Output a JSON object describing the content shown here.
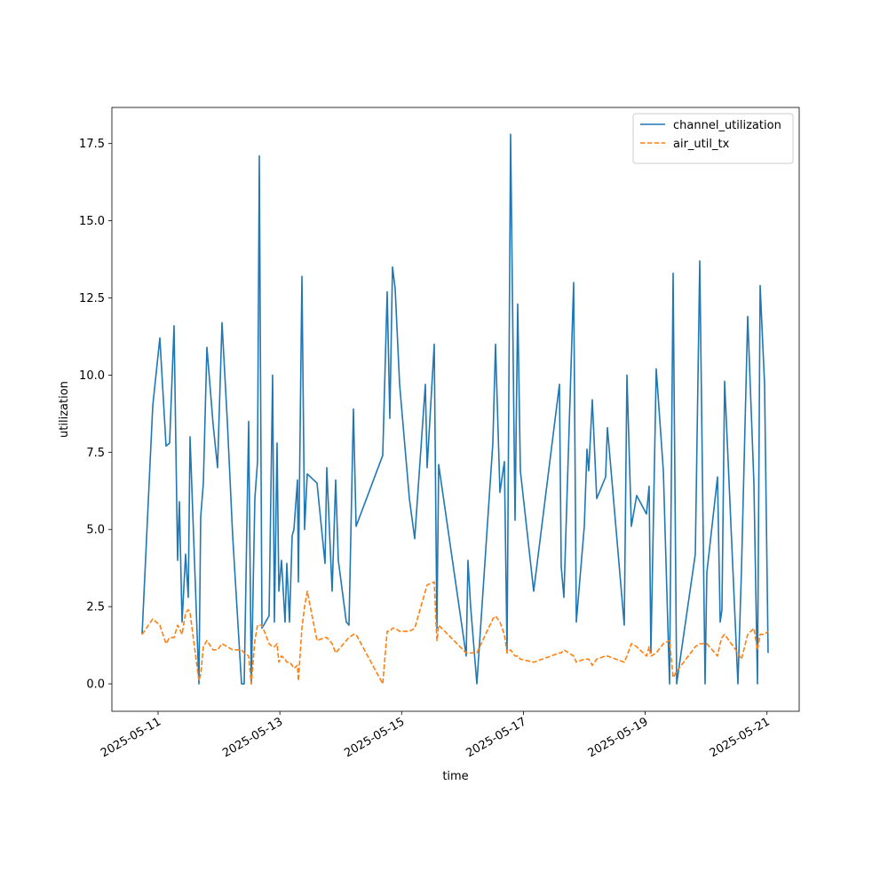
{
  "chart_data": {
    "type": "line",
    "xlabel": "time",
    "ylabel": "utilization",
    "x": [
      "2025-05-10 17:42",
      "2025-05-10 21:54",
      "2025-05-11 00:42",
      "2025-05-11 03:09",
      "2025-05-11 04:33",
      "2025-05-11 06:18",
      "2025-05-11 07:42",
      "2025-05-11 08:24",
      "2025-05-11 09:27",
      "2025-05-11 10:51",
      "2025-05-11 11:54",
      "2025-05-11 12:36",
      "2025-05-11 14:21",
      "2025-05-11 16:06",
      "2025-05-11 16:48",
      "2025-05-11 17:51",
      "2025-05-11 19:15",
      "2025-05-11 21:42",
      "2025-05-11 23:27",
      "2025-05-12 01:12",
      "2025-05-12 03:18",
      "2025-05-12 05:24",
      "2025-05-12 08:54",
      "2025-05-12 09:57",
      "2025-05-12 11:42",
      "2025-05-12 12:45",
      "2025-05-12 14:09",
      "2025-05-12 15:12",
      "2025-05-12 15:54",
      "2025-05-12 16:57",
      "2025-05-12 19:45",
      "2025-05-12 21:09",
      "2025-05-12 21:51",
      "2025-05-12 22:54",
      "2025-05-12 23:36",
      "2025-05-13 00:39",
      "2025-05-13 02:03",
      "2025-05-13 02:45",
      "2025-05-13 03:48",
      "2025-05-13 04:51",
      "2025-05-13 05:33",
      "2025-05-13 06:57",
      "2025-05-13 07:18",
      "2025-05-13 08:42",
      "2025-05-13 09:45",
      "2025-05-13 10:48",
      "2025-05-13 14:39",
      "2025-05-13 17:48",
      "2025-05-13 18:30",
      "2025-05-13 20:36",
      "2025-05-13 22:00",
      "2025-05-13 23:03",
      "2025-05-14 02:12",
      "2025-05-14 03:15",
      "2025-05-14 05:00",
      "2025-05-14 06:03",
      "2025-05-14 16:33",
      "2025-05-14 18:18",
      "2025-05-14 19:21",
      "2025-05-14 20:24",
      "2025-05-14 21:27",
      "2025-05-14 23:12",
      "2025-05-15 03:03",
      "2025-05-15 05:09",
      "2025-05-15 09:21",
      "2025-05-15 10:03",
      "2025-05-15 12:51",
      "2025-05-15 13:54",
      "2025-05-15 14:36",
      "2025-05-16 01:27",
      "2025-05-16 02:09",
      "2025-05-16 03:12",
      "2025-05-16 05:39",
      "2025-05-16 11:57",
      "2025-05-16 13:00",
      "2025-05-16 14:45",
      "2025-05-16 16:30",
      "2025-05-16 17:33",
      "2025-05-16 18:57",
      "2025-05-16 20:42",
      "2025-05-16 21:45",
      "2025-05-16 22:48",
      "2025-05-17 04:03",
      "2025-05-17 14:12",
      "2025-05-17 14:54",
      "2025-05-17 15:57",
      "2025-05-17 19:48",
      "2025-05-17 20:51",
      "2025-05-18 00:00",
      "2025-05-18 01:03",
      "2025-05-18 01:45",
      "2025-05-18 03:09",
      "2025-05-18 04:54",
      "2025-05-18 08:24",
      "2025-05-18 09:06",
      "2025-05-18 15:45",
      "2025-05-18 16:48",
      "2025-05-18 18:33",
      "2025-05-18 20:39",
      "2025-05-19 00:30",
      "2025-05-19 01:33",
      "2025-05-19 02:15",
      "2025-05-19 04:21",
      "2025-05-19 07:09",
      "2025-05-19 09:36",
      "2025-05-19 11:00",
      "2025-05-19 12:24",
      "2025-05-19 19:45",
      "2025-05-19 21:30",
      "2025-05-19 23:36",
      "2025-05-20 00:18",
      "2025-05-20 04:30",
      "2025-05-20 05:33",
      "2025-05-20 06:15",
      "2025-05-20 07:18",
      "2025-05-20 12:33",
      "2025-05-20 13:57",
      "2025-05-20 16:24",
      "2025-05-20 18:51",
      "2025-05-20 20:15",
      "2025-05-20 21:18",
      "2025-05-20 23:03",
      "2025-05-21 00:27"
    ],
    "series": [
      {
        "name": "channel_utilization",
        "color": "#1f77b4",
        "linestyle": "solid",
        "values": [
          1.6,
          9.0,
          11.2,
          7.7,
          7.8,
          11.6,
          4.0,
          5.9,
          2.0,
          4.2,
          2.8,
          8.0,
          4.0,
          0.0,
          5.4,
          6.5,
          10.9,
          8.4,
          7.0,
          11.7,
          8.5,
          4.8,
          0.0,
          0.0,
          8.5,
          0.0,
          6.0,
          7.2,
          17.1,
          1.8,
          2.2,
          10.0,
          2.0,
          7.8,
          3.0,
          4.0,
          2.0,
          3.9,
          2.0,
          4.8,
          5.0,
          6.6,
          3.3,
          13.2,
          5.0,
          6.8,
          6.5,
          3.9,
          7.0,
          3.0,
          6.6,
          4.0,
          2.0,
          1.9,
          8.9,
          5.1,
          7.4,
          12.7,
          8.6,
          13.5,
          12.8,
          9.7,
          6.0,
          4.7,
          9.7,
          7.0,
          11.0,
          1.8,
          7.1,
          0.9,
          4.0,
          2.5,
          0.0,
          7.8,
          11.0,
          6.2,
          7.2,
          1.0,
          17.8,
          5.3,
          12.3,
          6.9,
          3.0,
          9.7,
          3.8,
          2.8,
          13.0,
          2.0,
          5.1,
          7.6,
          6.9,
          9.2,
          6.0,
          6.7,
          8.3,
          1.9,
          10.0,
          5.1,
          6.1,
          5.5,
          6.4,
          1.0,
          10.2,
          6.9,
          0.0,
          13.3,
          0.0,
          4.2,
          13.7,
          0.0,
          3.6,
          6.7,
          2.0,
          2.4,
          9.8,
          0.0,
          3.7,
          11.9,
          6.5,
          0.0,
          12.9,
          9.7,
          1.0
        ]
      },
      {
        "name": "air_util_tx",
        "color": "#ff7f0e",
        "linestyle": "dashed",
        "values": [
          1.6,
          2.1,
          1.9,
          1.3,
          1.5,
          1.5,
          1.9,
          1.8,
          1.6,
          2.3,
          2.4,
          2.3,
          1.2,
          0.1,
          0.3,
          1.2,
          1.4,
          1.1,
          1.1,
          1.3,
          1.2,
          1.1,
          1.1,
          1.0,
          0.9,
          0.0,
          1.4,
          1.9,
          1.9,
          1.9,
          1.3,
          1.2,
          1.2,
          1.3,
          0.7,
          0.9,
          0.8,
          0.7,
          0.7,
          0.6,
          0.5,
          0.6,
          0.1,
          1.8,
          2.5,
          3.0,
          1.4,
          1.5,
          1.5,
          1.3,
          1.0,
          1.1,
          1.4,
          1.5,
          1.6,
          1.6,
          0.0,
          1.7,
          1.7,
          1.8,
          1.8,
          1.7,
          1.7,
          1.8,
          3.0,
          3.2,
          3.3,
          1.4,
          1.9,
          1.0,
          1.0,
          1.0,
          1.0,
          2.1,
          2.2,
          2.0,
          1.6,
          1.0,
          1.1,
          0.9,
          0.9,
          0.8,
          0.7,
          1.0,
          1.0,
          1.1,
          0.9,
          0.7,
          0.8,
          0.8,
          0.8,
          0.6,
          0.8,
          0.9,
          0.9,
          0.7,
          0.9,
          1.3,
          1.2,
          0.9,
          1.2,
          0.9,
          1.0,
          1.3,
          1.4,
          0.2,
          0.4,
          1.2,
          1.3,
          1.3,
          1.3,
          0.9,
          1.3,
          1.5,
          1.6,
          1.0,
          0.8,
          1.6,
          1.8,
          1.1,
          1.6,
          1.6,
          1.7
        ]
      }
    ],
    "xlim": [
      "2025-05-10 05:48",
      "2025-05-21 12:42"
    ],
    "xticks": [
      "2025-05-11",
      "2025-05-13",
      "2025-05-15",
      "2025-05-17",
      "2025-05-19",
      "2025-05-21"
    ],
    "ylim": [
      -0.89,
      18.67
    ],
    "yticks": [
      {
        "value": 0,
        "label": "0.0"
      },
      2.5,
      {
        "value": 5,
        "label": "5.0"
      },
      7.5,
      {
        "value": 10,
        "label": "10.0"
      },
      12.5,
      {
        "value": 15,
        "label": "15.0"
      },
      17.5
    ],
    "legend": "upper right"
  }
}
